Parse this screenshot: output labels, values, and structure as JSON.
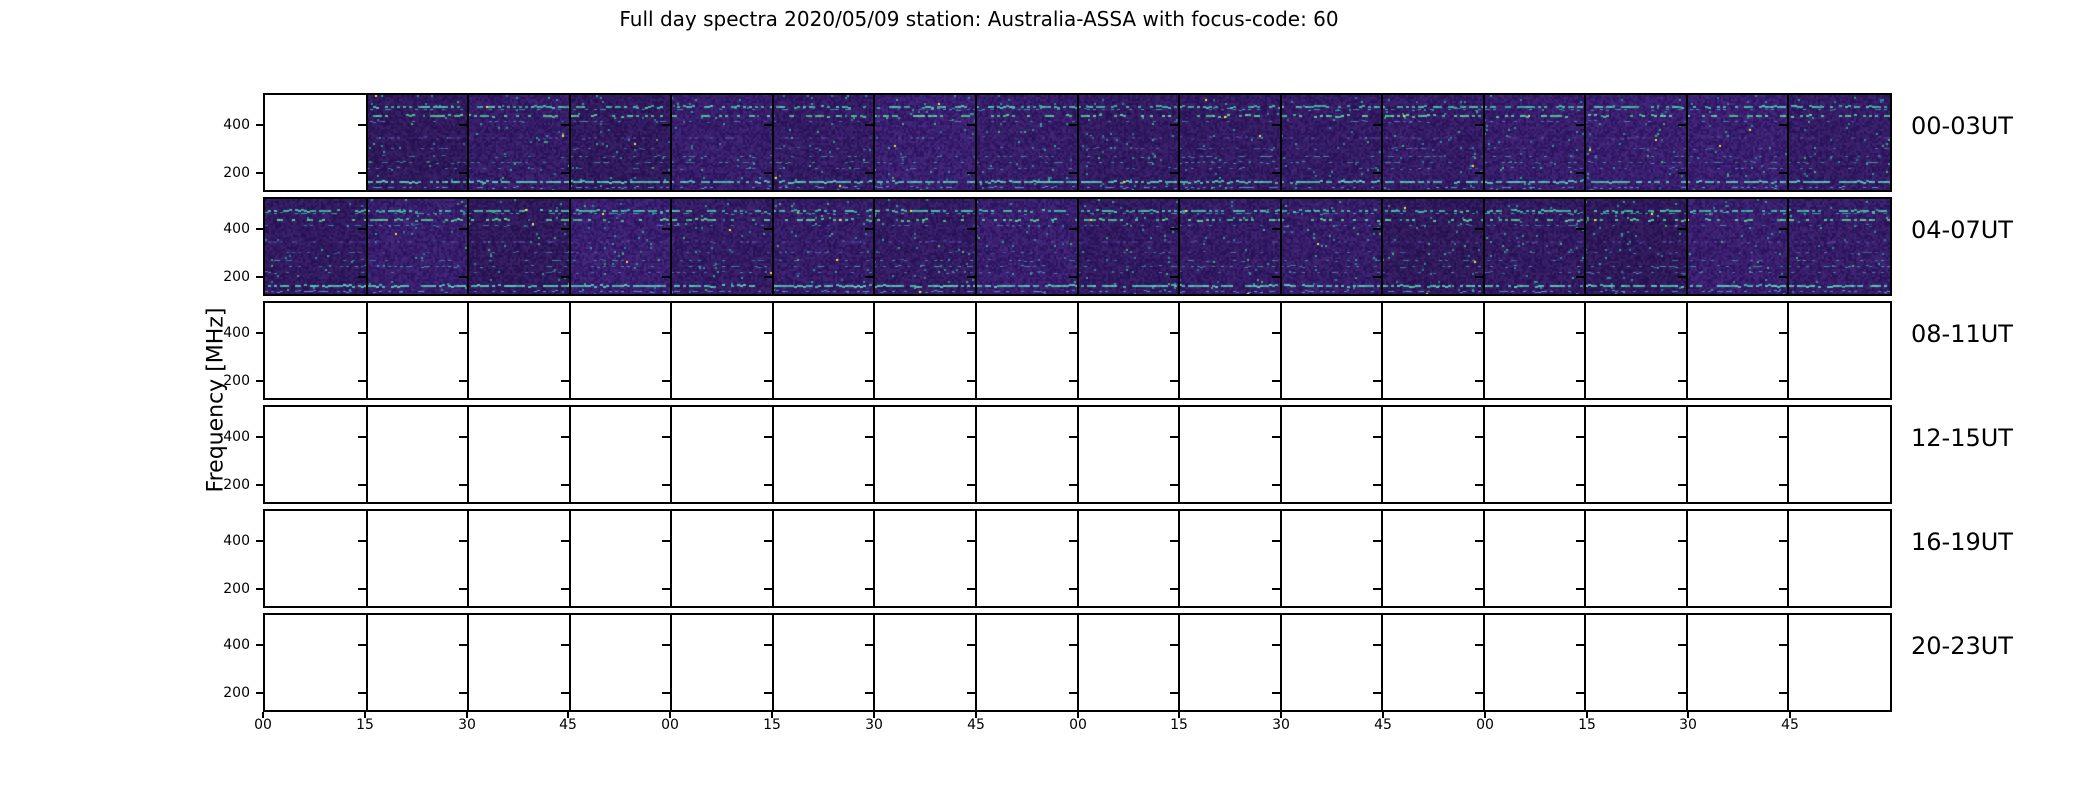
{
  "chart_data": {
    "type": "heatmap",
    "title": "Full day spectra 2020/05/09 station: Australia-ASSA with focus-code: 60",
    "ylabel": "Frequency [MHz]",
    "y_ticks": [
      "400",
      "200"
    ],
    "y_tick_values_mhz": [
      400,
      200
    ],
    "x_tick_labels": [
      "00",
      "15",
      "30",
      "45",
      "00",
      "15",
      "30",
      "45",
      "00",
      "15",
      "30",
      "45",
      "00",
      "15",
      "30",
      "45"
    ],
    "x_unit": "minutes past the hour; each row spans 4 hours in sixteen 15-minute spectrogram panels",
    "segments_per_row": 16,
    "minutes_per_segment": 15,
    "rows": [
      {
        "label": "00-03UT",
        "segments": [
          0,
          1,
          1,
          1,
          1,
          1,
          1,
          1,
          1,
          1,
          1,
          1,
          1,
          1,
          1,
          1
        ]
      },
      {
        "label": "04-07UT",
        "segments": [
          1,
          1,
          1,
          1,
          1,
          1,
          1,
          1,
          1,
          1,
          1,
          1,
          1,
          1,
          1,
          1
        ]
      },
      {
        "label": "08-11UT",
        "segments": [
          0,
          0,
          0,
          0,
          0,
          0,
          0,
          0,
          0,
          0,
          0,
          0,
          0,
          0,
          0,
          0
        ]
      },
      {
        "label": "12-15UT",
        "segments": [
          0,
          0,
          0,
          0,
          0,
          0,
          0,
          0,
          0,
          0,
          0,
          0,
          0,
          0,
          0,
          0
        ]
      },
      {
        "label": "16-19UT",
        "segments": [
          0,
          0,
          0,
          0,
          0,
          0,
          0,
          0,
          0,
          0,
          0,
          0,
          0,
          0,
          0,
          0
        ]
      },
      {
        "label": "20-23UT",
        "segments": [
          0,
          0,
          0,
          0,
          0,
          0,
          0,
          0,
          0,
          0,
          0,
          0,
          0,
          0,
          0,
          0
        ]
      }
    ],
    "legend": "none",
    "grid": "black panel borders between adjacent 15-minute panels; empty panels are white",
    "colors": {
      "figure_background": "#ffffff",
      "axis": "#000000",
      "spectrogram_base_purple": "#341a66",
      "emission_teal": "#46afa5",
      "emission_green": "#55b98a",
      "emission_blue": "#5a91c3",
      "hot_pixel_yellow": "#fde725",
      "empty_panel": "#ffffff"
    },
    "emission_band_fractions_from_panel_top": [
      0.115,
      0.21,
      0.44,
      0.64,
      0.7,
      0.9,
      0.965
    ]
  }
}
